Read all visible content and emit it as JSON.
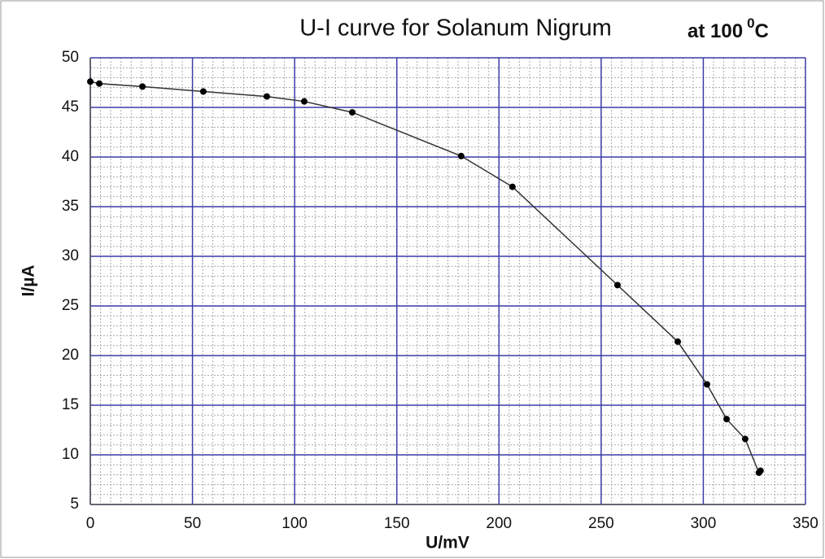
{
  "chart_data": {
    "type": "line",
    "title": "U-I curve for Solanum Nigrum",
    "temperature_label": {
      "text": "at 100",
      "sup": "0",
      "unit": "C"
    },
    "x_label": "U/mV",
    "y_label": "I/µA",
    "x": [
      0,
      4.4,
      25.5,
      55.3,
      86.4,
      104.7,
      128.2,
      181.5,
      206.6,
      258,
      287.5,
      301.8,
      311.4,
      320.5,
      327.2,
      328
    ],
    "series": [
      {
        "color": "#333333",
        "marker_color": "#000000",
        "values": [
          47.6,
          47.4,
          47.1,
          46.6,
          46.1,
          45.6,
          44.5,
          40.1,
          37.0,
          27.1,
          21.4,
          17.1,
          13.6,
          11.6,
          8.2,
          8.4
        ]
      }
    ],
    "xlim": [
      0,
      350
    ],
    "xticks": [
      0,
      50,
      100,
      150,
      200,
      250,
      300,
      350
    ],
    "ylim": [
      5,
      50
    ],
    "yticks": [
      5,
      10,
      15,
      20,
      25,
      30,
      35,
      40,
      45,
      50
    ],
    "grid": true,
    "grid_color": "#3c3ca8",
    "minor_grid": {
      "x": 5,
      "y": 1
    }
  }
}
